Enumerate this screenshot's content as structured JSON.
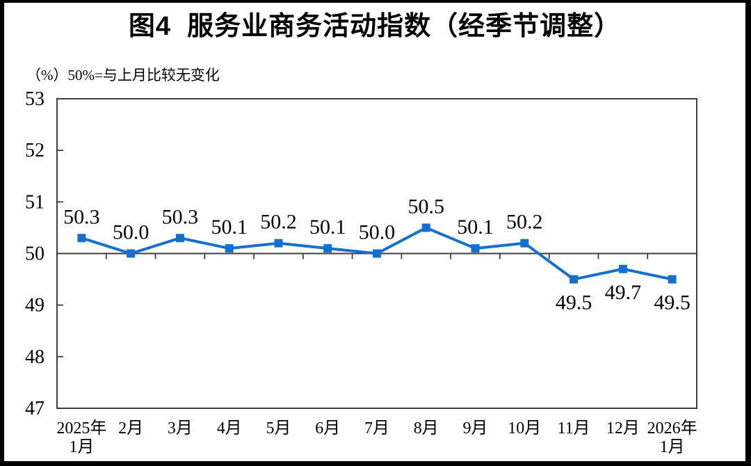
{
  "page": {
    "title": "图4  服务业商务活动指数（经季节调整）",
    "subtitle": "（%）50%=与上月比较无变化"
  },
  "chart_data": {
    "type": "line",
    "title": "图4  服务业商务活动指数（经季节调整）",
    "subtitle_note": "（%）50%=与上月比较无变化",
    "unit": "%",
    "categories": [
      [
        "2025年",
        "1月"
      ],
      [
        "2月"
      ],
      [
        "3月"
      ],
      [
        "4月"
      ],
      [
        "5月"
      ],
      [
        "6月"
      ],
      [
        "7月"
      ],
      [
        "8月"
      ],
      [
        "9月"
      ],
      [
        "10月"
      ],
      [
        "11月"
      ],
      [
        "12月"
      ],
      [
        "2026年",
        "1月"
      ]
    ],
    "series": [
      {
        "name": "服务业商务活动指数",
        "values": [
          50.3,
          50.0,
          50.3,
          50.1,
          50.2,
          50.1,
          50.0,
          50.5,
          50.1,
          50.2,
          49.5,
          49.7,
          49.5
        ],
        "data_label_positions": [
          "above",
          "above",
          "above",
          "above",
          "above",
          "above",
          "above",
          "above",
          "above",
          "above",
          "below",
          "below",
          "below"
        ]
      }
    ],
    "ylim": [
      47,
      53
    ],
    "yticks": [
      47,
      48,
      49,
      50,
      51,
      52,
      53
    ],
    "baseline_value": 50,
    "grid": false,
    "legend": "none",
    "marker": "square",
    "colors": {
      "line": "#1570CD",
      "marker": "#1570CD",
      "axis": "#3d3d3d",
      "text": "#000000",
      "background": "#ffffff",
      "frame_border": "#000000"
    }
  }
}
